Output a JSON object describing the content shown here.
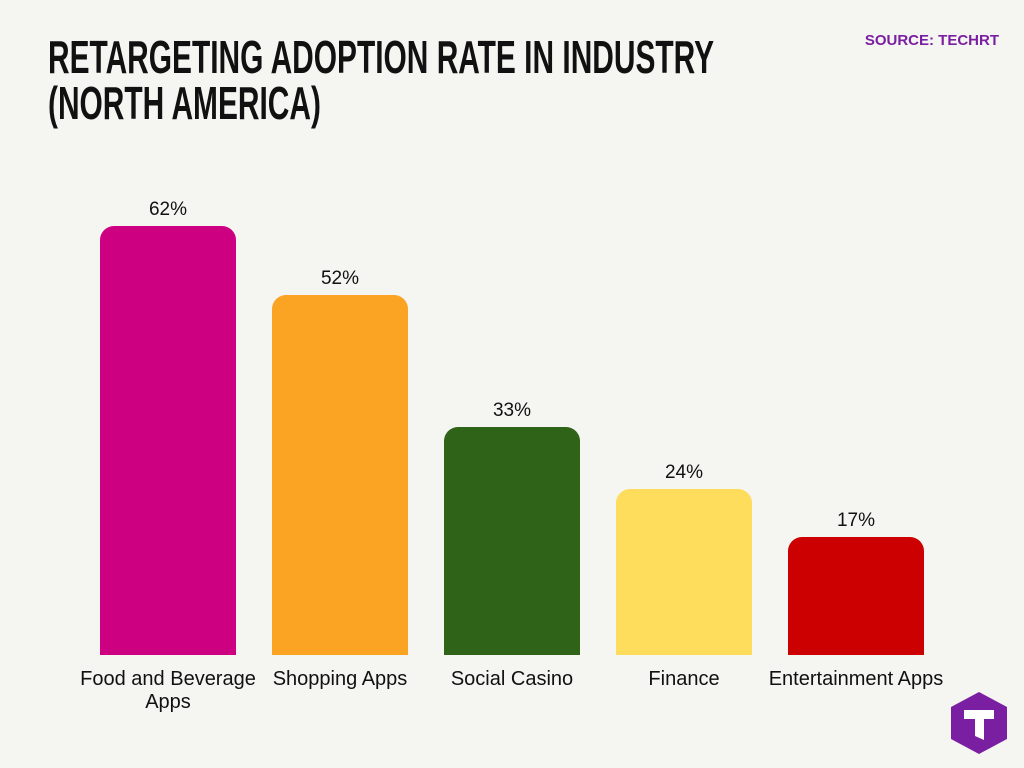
{
  "chart_data": {
    "type": "bar",
    "title": "RETARGETING ADOPTION RATE IN INDUSTRY (NORTH AMERICA)",
    "source": "SOURCE: TECHRT",
    "categories": [
      "Food and Beverage Apps",
      "Shopping Apps",
      "Social Casino",
      "Finance",
      "Entertainment Apps"
    ],
    "values": [
      62,
      52,
      33,
      24,
      17
    ],
    "value_labels": [
      "62%",
      "52%",
      "33%",
      "24%",
      "17%"
    ],
    "colors": [
      "#cc0080",
      "#fba424",
      "#2f6418",
      "#fedd5c",
      "#cc0000"
    ]
  }
}
